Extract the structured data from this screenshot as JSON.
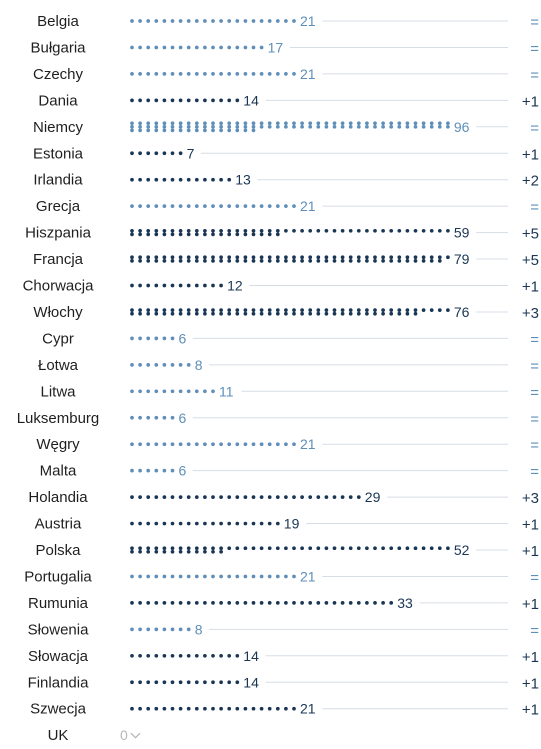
{
  "colors": {
    "light": "#5f8fb8",
    "dark": "#1a3654",
    "change_light": "#5f8fb8",
    "change_dark": "#1a3654",
    "gridline": "#d7dde5",
    "uk_gray": "#b8b8b8"
  },
  "chart_data": {
    "type": "dot-bar",
    "categories": [
      "Belgia",
      "Bułgaria",
      "Czechy",
      "Dania",
      "Niemcy",
      "Estonia",
      "Irlandia",
      "Grecja",
      "Hiszpania",
      "Francja",
      "Chorwacja",
      "Włochy",
      "Cypr",
      "Łotwa",
      "Litwa",
      "Luksemburg",
      "Węgry",
      "Malta",
      "Holandia",
      "Austria",
      "Polska",
      "Portugalia",
      "Rumunia",
      "Słowenia",
      "Słowacja",
      "Finlandia",
      "Szwecja",
      "UK"
    ],
    "values": [
      21,
      17,
      21,
      14,
      96,
      7,
      13,
      21,
      59,
      79,
      12,
      76,
      6,
      8,
      11,
      6,
      21,
      6,
      29,
      19,
      52,
      21,
      33,
      8,
      14,
      14,
      21,
      0
    ],
    "value_labels": [
      "21",
      "17",
      "21",
      "14",
      "96",
      "7",
      "13",
      "21",
      "59",
      "79",
      "12",
      "76",
      "6",
      "8",
      "11",
      "6",
      "21",
      "6",
      "29",
      "19",
      "52",
      "21",
      "33",
      "8",
      "14",
      "14",
      "21",
      "0"
    ],
    "changes": [
      "=",
      "=",
      "=",
      "+1",
      "=",
      "+1",
      "+2",
      "=",
      "+5",
      "+5",
      "+1",
      "+3",
      "=",
      "=",
      "=",
      "=",
      "=",
      "=",
      "+3",
      "+1",
      "+1",
      "=",
      "+1",
      "=",
      "+1",
      "+1",
      "+1",
      ""
    ],
    "dot_color": [
      "light",
      "light",
      "light",
      "dark",
      "light",
      "dark",
      "dark",
      "light",
      "dark",
      "dark",
      "dark",
      "dark",
      "light",
      "light",
      "light",
      "light",
      "light",
      "light",
      "dark",
      "dark",
      "dark",
      "light",
      "dark",
      "light",
      "dark",
      "dark",
      "dark",
      "none"
    ],
    "uk_indicator": "chevron-down"
  }
}
